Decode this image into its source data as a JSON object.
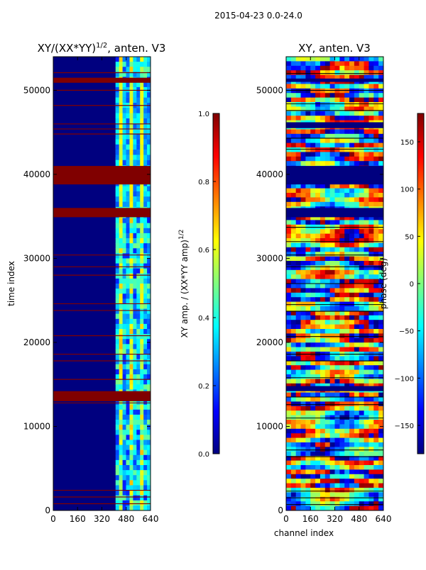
{
  "figure_title": "2015-04-23 0.0-24.0",
  "colors": {
    "jet": [
      "#00007f",
      "#0000ff",
      "#007fff",
      "#00ffff",
      "#7fff7f",
      "#ffff00",
      "#ff7f00",
      "#ff0000",
      "#7f0000"
    ],
    "frame": "#000000",
    "flagged": "#800000",
    "masked_band": "#00007f"
  },
  "chart_data": [
    {
      "id": "amp",
      "type": "heatmap",
      "title": "XY/(XX*YY)",
      "title_sup": "1/2",
      "title_suffix": ", anten. V3",
      "xlabel": "",
      "ylabel": "time index",
      "xlim": [
        0,
        640
      ],
      "ylim": [
        0,
        54000
      ],
      "xticks": [
        0,
        160,
        320,
        480,
        640
      ],
      "yticks": [
        0,
        10000,
        20000,
        30000,
        40000,
        50000
      ],
      "active_channel_range": [
        410,
        640
      ],
      "flagged_time_bands": [
        [
          38800,
          41000
        ],
        [
          34900,
          36000
        ],
        [
          50900,
          51500
        ],
        [
          13000,
          14200
        ]
      ],
      "flag_lines": [
        800,
        1600,
        2400,
        12800,
        15600,
        17800,
        18600,
        20800,
        23800,
        24600,
        28000,
        29000,
        30400,
        44800,
        45400,
        46000,
        48200,
        50000,
        52100
      ],
      "colorbar": {
        "label": "XY amp. / (XX*YY amp)",
        "label_sup": "1/2",
        "range": [
          0.0,
          1.0
        ],
        "ticks": [
          "0.0",
          "0.2",
          "0.4",
          "0.6",
          "0.8",
          "1.0"
        ]
      }
    },
    {
      "id": "phase",
      "type": "heatmap",
      "title": "XY, anten. V3",
      "xlabel": "channel index",
      "ylabel": "",
      "xlim": [
        0,
        640
      ],
      "ylim": [
        0,
        54000
      ],
      "xticks": [
        0,
        160,
        320,
        480,
        640
      ],
      "yticks": [
        0,
        10000,
        20000,
        30000,
        40000,
        50000
      ],
      "masked_time_bands": [
        [
          38800,
          41000
        ],
        [
          34900,
          36000
        ],
        [
          14200,
          14800
        ],
        [
          45500,
          46200
        ],
        [
          51000,
          51400
        ]
      ],
      "flag_lines": [
        700,
        1500,
        2300,
        6400,
        7200,
        11000,
        12600,
        13500,
        15800,
        17800,
        18600,
        20700,
        23700,
        24500,
        27000,
        29000,
        30400,
        32000,
        33700,
        43000,
        44300,
        47600,
        48400,
        50000,
        52000
      ],
      "colorbar": {
        "label": "phase (deg)",
        "range": [
          -180,
          180
        ],
        "ticks": [
          "150",
          "100",
          "50",
          "0",
          "−50",
          "−100",
          "−150"
        ],
        "tick_values": [
          150,
          100,
          50,
          0,
          -50,
          -100,
          -150
        ]
      }
    }
  ]
}
